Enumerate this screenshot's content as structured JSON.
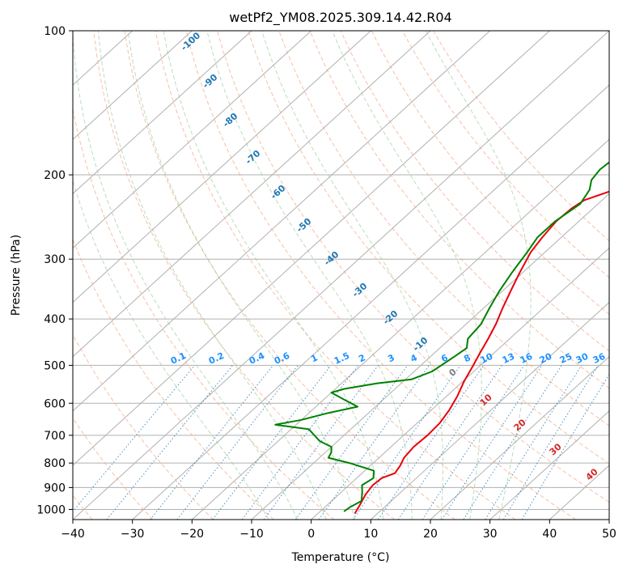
{
  "chart_data": {
    "type": "line",
    "title": "wetPf2_YM08.2025.309.14.42.R04",
    "xlabel": "Temperature (°C)",
    "ylabel": "Pressure (hPa)",
    "xlim": [
      -40,
      50
    ],
    "ylim": [
      1050,
      100
    ],
    "y_scale": "log",
    "x_ticks": [
      -40,
      -30,
      -20,
      -10,
      0,
      10,
      20,
      30,
      40,
      50
    ],
    "y_ticks": [
      100,
      200,
      300,
      400,
      500,
      600,
      700,
      800,
      900,
      1000
    ],
    "grid": true,
    "series": [
      {
        "color": "#e8000b",
        "points": [
          [
            6.2,
            1020
          ],
          [
            5.5,
            980
          ],
          [
            4.5,
            930
          ],
          [
            4.0,
            890
          ],
          [
            4.2,
            860
          ],
          [
            5.5,
            840
          ],
          [
            5.0,
            810
          ],
          [
            4.2,
            780
          ],
          [
            3.8,
            740
          ],
          [
            4.0,
            700
          ],
          [
            3.8,
            660
          ],
          [
            3.0,
            620
          ],
          [
            1.8,
            580
          ],
          [
            0.2,
            540
          ],
          [
            -1.2,
            500
          ],
          [
            -2.4,
            470
          ],
          [
            -3.6,
            440
          ],
          [
            -5.0,
            410
          ],
          [
            -6.8,
            380
          ],
          [
            -8.6,
            350
          ],
          [
            -10.5,
            320
          ],
          [
            -12.4,
            290
          ],
          [
            -13.2,
            270
          ],
          [
            -13.8,
            250
          ],
          [
            -13.6,
            235
          ],
          [
            -13.0,
            226
          ],
          [
            -9.0,
            212
          ],
          [
            -4.0,
            196
          ],
          [
            1.0,
            180
          ],
          [
            6.5,
            165
          ],
          [
            13.0,
            150
          ],
          [
            20.0,
            135
          ],
          [
            27.5,
            120
          ],
          [
            35.5,
            108
          ],
          [
            43.5,
            100
          ]
        ]
      },
      {
        "color": "#008000",
        "points": [
          [
            4.0,
            1010
          ],
          [
            4.2,
            990
          ],
          [
            5.0,
            960
          ],
          [
            3.5,
            920
          ],
          [
            2.2,
            890
          ],
          [
            2.8,
            860
          ],
          [
            1.5,
            830
          ],
          [
            -4.0,
            800
          ],
          [
            -8.5,
            780
          ],
          [
            -9.0,
            760
          ],
          [
            -10.0,
            740
          ],
          [
            -13.0,
            720
          ],
          [
            -15.0,
            700
          ],
          [
            -17.0,
            680
          ],
          [
            -23.5,
            665
          ],
          [
            -20.0,
            650
          ],
          [
            -17.0,
            630
          ],
          [
            -13.0,
            610
          ],
          [
            -16.5,
            590
          ],
          [
            -20.0,
            570
          ],
          [
            -18.5,
            560
          ],
          [
            -14.0,
            545
          ],
          [
            -9.0,
            535
          ],
          [
            -7.0,
            515
          ],
          [
            -6.0,
            480
          ],
          [
            -5.5,
            460
          ],
          [
            -7.0,
            440
          ],
          [
            -7.5,
            410
          ],
          [
            -9.0,
            380
          ],
          [
            -10.5,
            350
          ],
          [
            -11.8,
            320
          ],
          [
            -13.0,
            290
          ],
          [
            -14.0,
            270
          ],
          [
            -14.0,
            250
          ],
          [
            -13.0,
            230
          ],
          [
            -14.0,
            215
          ],
          [
            -15.5,
            205
          ],
          [
            -16.0,
            195
          ],
          [
            -15.5,
            180
          ],
          [
            -15.0,
            165
          ],
          [
            -13.5,
            150
          ],
          [
            -12.0,
            140
          ],
          [
            -10.5,
            128
          ],
          [
            -9.0,
            115
          ],
          [
            -7.5,
            100
          ]
        ]
      }
    ],
    "dry_adiabats": [
      -100,
      -90,
      -80,
      -70,
      -60,
      -50,
      -40,
      -30,
      -20,
      -10,
      0,
      10,
      20,
      30,
      40,
      50,
      60,
      70,
      80,
      90,
      100,
      110,
      120
    ],
    "moist_adiabat_labels": [
      {
        "value": "-100",
        "color": "#1f77b4"
      },
      {
        "value": "-90",
        "color": "#1f77b4"
      },
      {
        "value": "-80",
        "color": "#1f77b4"
      },
      {
        "value": "-70",
        "color": "#1f77b4"
      },
      {
        "value": "-60",
        "color": "#1f77b4"
      },
      {
        "value": "-50",
        "color": "#1f77b4"
      },
      {
        "value": "-40",
        "color": "#1f77b4"
      },
      {
        "value": "-30",
        "color": "#1f77b4"
      },
      {
        "value": "-20",
        "color": "#1f77b4"
      },
      {
        "value": "-10",
        "color": "#1f77b4"
      },
      {
        "value": "0",
        "color": "#7f7f7f"
      },
      {
        "value": "10",
        "color": "#d62728"
      },
      {
        "value": "20",
        "color": "#d62728"
      },
      {
        "value": "30",
        "color": "#d62728"
      },
      {
        "value": "40",
        "color": "#d62728"
      }
    ],
    "mixing_ratio_labels": [
      "0.1",
      "0.2",
      "0.4",
      "0.6",
      "1",
      "1.5",
      "2",
      "3",
      "4",
      "6",
      "8",
      "10",
      "13",
      "16",
      "20",
      "25",
      "30",
      "36"
    ]
  }
}
